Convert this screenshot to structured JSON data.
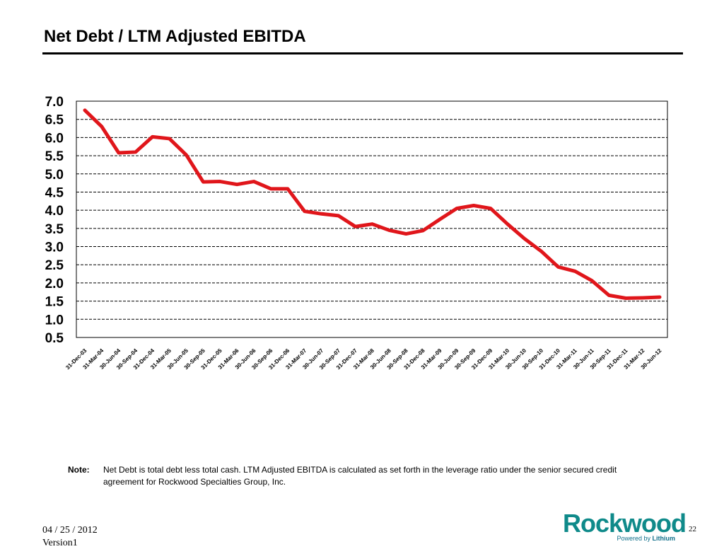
{
  "slide": {
    "title": "Net Debt / LTM Adjusted EBITDA",
    "note_label": "Note:",
    "note_text": "Net Debt is total debt less total cash.  LTM Adjusted EBITDA is calculated as set forth in the leverage ratio under the senior secured credit agreement for Rockwood Specialties Group, Inc.",
    "date": "04 / 25 / 2012",
    "version": "Version1",
    "page_number": "22",
    "logo_word": "Rockwood",
    "logo_tagline_prefix": "Powered by",
    "logo_tagline_brand": "Lithium",
    "colors": {
      "line": "#e0161b",
      "logo": "#0f8a8a",
      "text": "#000000"
    }
  },
  "chart_data": {
    "type": "line",
    "title": "",
    "xlabel": "",
    "ylabel": "",
    "ylim": [
      0.5,
      7.0
    ],
    "yticks": [
      "7.0",
      "6.5",
      "6.0",
      "5.5",
      "5.0",
      "4.5",
      "4.0",
      "3.5",
      "3.0",
      "2.5",
      "2.0",
      "1.5",
      "1.0",
      "0.5"
    ],
    "grid": "horizontal dashed",
    "legend": "none",
    "categories": [
      "31-Dec-03",
      "31-Mar-04",
      "30-Jun-04",
      "30-Sep-04",
      "31-Dec-04",
      "31-Mar-05",
      "30-Jun-05",
      "30-Sep-05",
      "31-Dec-05",
      "31-Mar-06",
      "30-Jun-06",
      "30-Sep-06",
      "31-Dec-06",
      "31-Mar-07",
      "30-Jun-07",
      "30-Sep-07",
      "31-Dec-07",
      "31-Mar-08",
      "30-Jun-08",
      "30-Sep-08",
      "31-Dec-08",
      "31-Mar-09",
      "30-Jun-09",
      "30-Sep-09",
      "31-Dec-09",
      "31-Mar-10",
      "30-Jun-10",
      "30-Sep-10",
      "31-Dec-10",
      "31-Mar-11",
      "30-Jun-11",
      "30-Sep-11",
      "31-Dec-11",
      "31-Mar-12",
      "30-Jun-12"
    ],
    "series": [
      {
        "color": "#e0161b",
        "values": [
          6.75,
          6.3,
          5.58,
          5.6,
          6.02,
          5.97,
          5.52,
          4.78,
          4.79,
          4.71,
          4.79,
          4.59,
          4.59,
          3.97,
          3.9,
          3.85,
          3.55,
          3.62,
          3.45,
          3.35,
          3.44,
          3.75,
          4.05,
          4.13,
          4.05,
          3.62,
          3.22,
          2.87,
          2.44,
          2.32,
          2.06,
          1.66,
          1.58,
          1.59,
          1.61
        ]
      }
    ]
  }
}
